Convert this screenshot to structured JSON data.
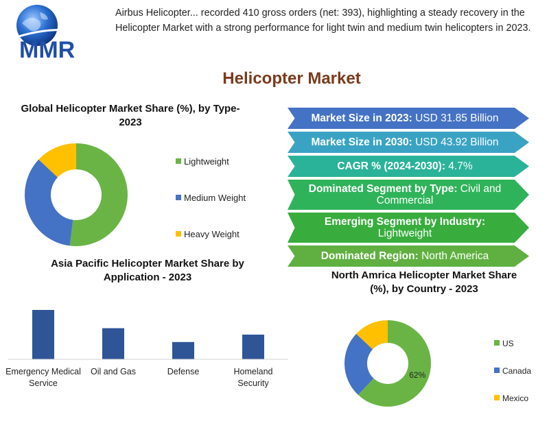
{
  "logo": {
    "text": "MMR"
  },
  "intro": "Airbus Helicopter... recorded 410 gross orders (net: 393), highlighting a steady recovery in the Helicopter Market with a strong performance for light twin and medium twin helicopters in 2023.",
  "main_title": "Helicopter  Market",
  "colors": {
    "lightweight": "#6ab445",
    "medium": "#4472c4",
    "heavy": "#ffc000",
    "bar": "#2f5597",
    "title": "#7a3a1c"
  },
  "highlights": [
    {
      "label": "Market Size in 2023:",
      "value": " USD 31.85 Billion",
      "color": "#4472c4"
    },
    {
      "label": "Market Size in 2030:",
      "value": " USD 43.92 Billion",
      "color": "#3aa3c4"
    },
    {
      "label": "CAGR % (2024-2030):",
      "value": " 4.7%",
      "color": "#2bb39a"
    },
    {
      "label": "Dominated Segment by Type:",
      "value": " Civil and Commercial",
      "color": "#2fb35a"
    },
    {
      "label": "Emerging Segment by Industry:",
      "value": " Lightweight",
      "color": "#38ad3e"
    },
    {
      "label": "Dominated Region:",
      "value": " North America",
      "color": "#5fb040"
    }
  ],
  "chart_data": [
    {
      "type": "pie",
      "title": "Global Helicopter  Market Share (%), by Type- 2023",
      "categories": [
        "Lightweight",
        "Medium Weight",
        "Heavy Weight"
      ],
      "values": [
        52,
        35,
        13
      ],
      "legend": "right"
    },
    {
      "type": "bar",
      "title": "Asia Pacific Helicopter  Market Share by Application - 2023",
      "categories": [
        "Emergency Medical Service",
        "Oil and Gas",
        "Defense",
        "Homeland Security"
      ],
      "values": [
        100,
        63,
        35,
        50
      ],
      "ylim": [
        0,
        100
      ],
      "grid": false
    },
    {
      "type": "pie",
      "title": "North Amrica Helicopter  Market Share (%), by Country - 2023",
      "categories": [
        "US",
        "Canada",
        "Mexico"
      ],
      "values": [
        62,
        25,
        13
      ],
      "data_labels": [
        "62%",
        "",
        ""
      ],
      "legend": "right"
    }
  ]
}
